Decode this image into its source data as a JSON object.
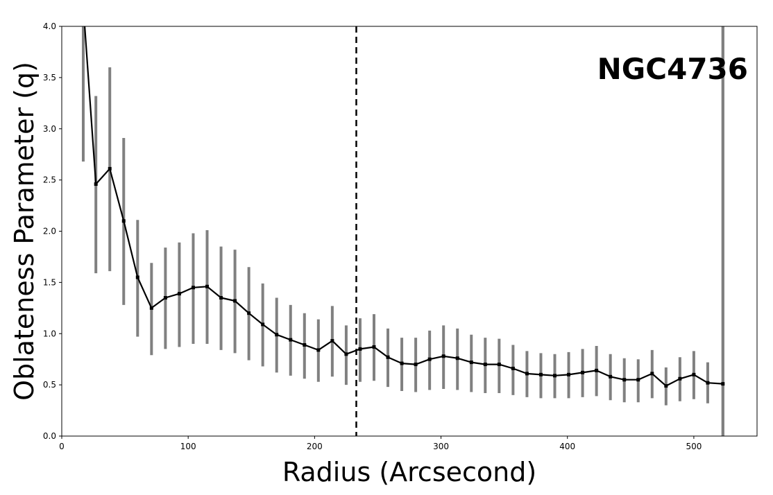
{
  "chart_data": {
    "type": "line",
    "title": "",
    "annotation": "NGC4736",
    "xlabel": "Radius (Arcsecond)",
    "ylabel": "Oblateness Parameter (q)",
    "xlim": [
      0,
      550
    ],
    "ylim": [
      0.0,
      4.0
    ],
    "xticks": [
      0,
      100,
      200,
      300,
      400,
      500
    ],
    "yticks": [
      0.0,
      0.5,
      1.0,
      1.5,
      2.0,
      2.5,
      3.0,
      3.5,
      4.0
    ],
    "xtick_labels": [
      "0",
      "100",
      "200",
      "300",
      "400",
      "500"
    ],
    "ytick_labels": [
      "0.0",
      "0.5",
      "1.0",
      "1.5",
      "2.0",
      "2.5",
      "3.0",
      "3.5",
      "4.0"
    ],
    "grid": false,
    "vline_dashed_x": 233,
    "vline_solid_x": 523,
    "line_color": "#000000",
    "errorbar_color": "#808080",
    "series": [
      {
        "x": [
          17,
          27,
          38,
          49,
          60,
          71,
          82,
          93,
          104,
          115,
          126,
          137,
          148,
          159,
          170,
          181,
          192,
          203,
          214,
          225,
          236,
          247,
          258,
          269,
          280,
          291,
          302,
          313,
          324,
          335,
          346,
          357,
          368,
          379,
          390,
          401,
          412,
          423,
          434,
          445,
          456,
          467,
          478,
          489,
          500,
          511,
          523
        ],
        "y": [
          4.2,
          2.46,
          2.61,
          2.1,
          1.55,
          1.25,
          1.35,
          1.39,
          1.45,
          1.46,
          1.35,
          1.32,
          1.2,
          1.09,
          0.99,
          0.94,
          0.89,
          0.84,
          0.93,
          0.8,
          0.85,
          0.87,
          0.77,
          0.71,
          0.7,
          0.75,
          0.78,
          0.76,
          0.72,
          0.7,
          0.7,
          0.66,
          0.61,
          0.6,
          0.59,
          0.6,
          0.62,
          0.64,
          0.58,
          0.55,
          0.55,
          0.61,
          0.49,
          0.56,
          0.6,
          0.52,
          0.51
        ],
        "err_low": [
          2.68,
          1.59,
          1.61,
          1.28,
          0.97,
          0.79,
          0.85,
          0.87,
          0.9,
          0.9,
          0.84,
          0.81,
          0.74,
          0.68,
          0.62,
          0.59,
          0.56,
          0.53,
          0.58,
          0.5,
          0.53,
          0.54,
          0.48,
          0.44,
          0.43,
          0.45,
          0.46,
          0.45,
          0.43,
          0.42,
          0.42,
          0.4,
          0.38,
          0.37,
          0.37,
          0.37,
          0.38,
          0.39,
          0.35,
          0.33,
          0.33,
          0.37,
          0.3,
          0.34,
          0.36,
          0.32,
          0.0
        ],
        "err_high": [
          4.2,
          3.32,
          3.6,
          2.91,
          2.11,
          1.69,
          1.84,
          1.89,
          1.98,
          2.01,
          1.85,
          1.82,
          1.65,
          1.49,
          1.35,
          1.28,
          1.2,
          1.14,
          1.27,
          1.08,
          1.15,
          1.19,
          1.05,
          0.96,
          0.96,
          1.03,
          1.08,
          1.05,
          0.99,
          0.96,
          0.95,
          0.89,
          0.83,
          0.81,
          0.8,
          0.82,
          0.85,
          0.88,
          0.8,
          0.76,
          0.75,
          0.84,
          0.67,
          0.77,
          0.83,
          0.72,
          4.2
        ]
      }
    ]
  }
}
